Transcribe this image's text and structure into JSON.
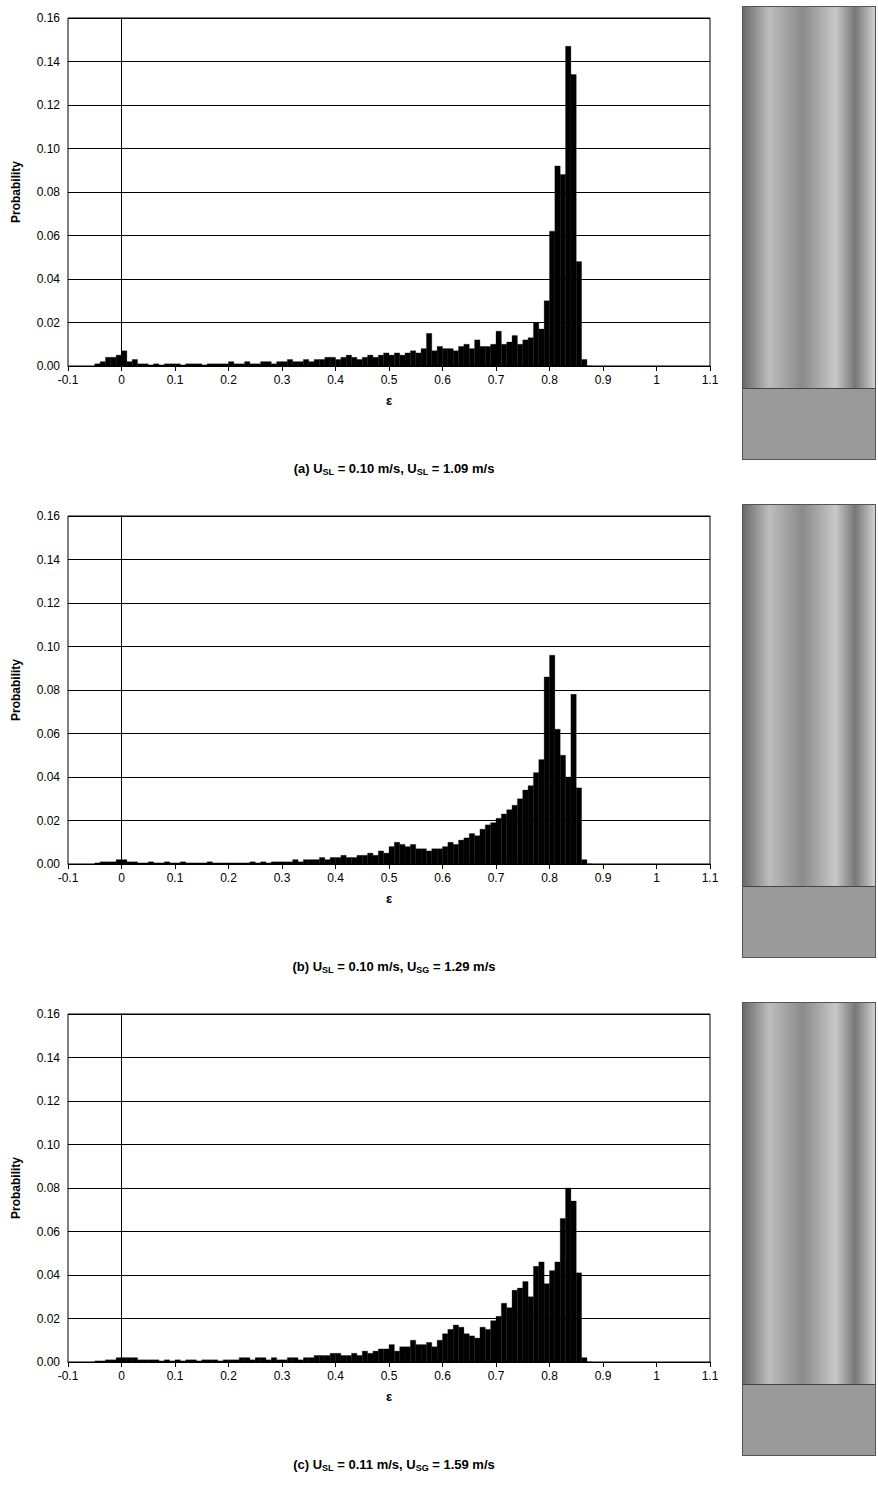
{
  "chart_data": [
    {
      "type": "histogram",
      "title": "(a) USL = 0.10 m/s, USL = 1.09 m/s",
      "xlabel": "ε",
      "ylabel": "Probability",
      "color": "#000000",
      "grid": true,
      "bins": [
        -0.05,
        -0.04,
        -0.03,
        -0.02,
        -0.01,
        0,
        0.01,
        0.02,
        0.03,
        0.04,
        0.05,
        0.06,
        0.07,
        0.08,
        0.09,
        0.1,
        0.11,
        0.12,
        0.13,
        0.14,
        0.15,
        0.16,
        0.17,
        0.18,
        0.19,
        0.2,
        0.21,
        0.22,
        0.23,
        0.24,
        0.25,
        0.26,
        0.27,
        0.28,
        0.29,
        0.3,
        0.31,
        0.32,
        0.33,
        0.34,
        0.35,
        0.36,
        0.37,
        0.38,
        0.39,
        0.4,
        0.41,
        0.42,
        0.43,
        0.44,
        0.45,
        0.46,
        0.47,
        0.48,
        0.49,
        0.5,
        0.51,
        0.52,
        0.53,
        0.54,
        0.55,
        0.56,
        0.57,
        0.58,
        0.59,
        0.6,
        0.61,
        0.62,
        0.63,
        0.64,
        0.65,
        0.66,
        0.67,
        0.68,
        0.69,
        0.7,
        0.71,
        0.72,
        0.73,
        0.74,
        0.75,
        0.76,
        0.77,
        0.78,
        0.79,
        0.8,
        0.81,
        0.82,
        0.83,
        0.84,
        0.85,
        0.86,
        0.87,
        0.88
      ],
      "values": [
        0.001,
        0.002,
        0.004,
        0.004,
        0.005,
        0.007,
        0.002,
        0.003,
        0.001,
        0.001,
        0.0005,
        0.001,
        0.0005,
        0.001,
        0.001,
        0.001,
        0.0005,
        0.001,
        0.001,
        0.001,
        0.0005,
        0.001,
        0.001,
        0.001,
        0.001,
        0.002,
        0.001,
        0.001,
        0.002,
        0.001,
        0.001,
        0.002,
        0.002,
        0.001,
        0.002,
        0.002,
        0.003,
        0.002,
        0.002,
        0.003,
        0.002,
        0.003,
        0.003,
        0.004,
        0.004,
        0.003,
        0.004,
        0.005,
        0.004,
        0.003,
        0.004,
        0.005,
        0.004,
        0.005,
        0.006,
        0.005,
        0.006,
        0.005,
        0.006,
        0.007,
        0.006,
        0.008,
        0.015,
        0.007,
        0.009,
        0.008,
        0.008,
        0.007,
        0.009,
        0.01,
        0.008,
        0.012,
        0.009,
        0.009,
        0.01,
        0.016,
        0.01,
        0.011,
        0.014,
        0.01,
        0.012,
        0.013,
        0.02,
        0.017,
        0.03,
        0.062,
        0.092,
        0.088,
        0.147,
        0.134,
        0.048,
        0.003,
        0
      ],
      "xlim": [
        -0.1,
        1.1
      ],
      "xticks": [
        -0.1,
        0,
        0.1,
        0.2,
        0.3,
        0.4,
        0.5,
        0.6,
        0.7,
        0.8,
        0.9,
        1,
        1.1
      ],
      "ylim": [
        0,
        0.16
      ],
      "yticks": [
        {
          "value": 0,
          "label": "0.00"
        },
        {
          "value": 0.02,
          "label": "0.02"
        },
        {
          "value": 0.04,
          "label": "0.04"
        },
        {
          "value": 0.06,
          "label": "0.06"
        },
        {
          "value": 0.08,
          "label": "0.08"
        },
        {
          "value": 0.1,
          "label": "0.10"
        },
        {
          "value": 0.12,
          "label": "0.12"
        },
        {
          "value": 0.14,
          "label": "0.14"
        },
        {
          "value": 0.16,
          "label": "0.16"
        }
      ]
    },
    {
      "type": "histogram",
      "title": "(b) USL = 0.10 m/s, USG = 1.29 m/s",
      "xlabel": "ε",
      "ylabel": "Probability",
      "color": "#000000",
      "grid": true,
      "bins": [
        -0.05,
        -0.04,
        -0.03,
        -0.02,
        -0.01,
        0,
        0.01,
        0.02,
        0.03,
        0.04,
        0.05,
        0.06,
        0.07,
        0.08,
        0.09,
        0.1,
        0.11,
        0.12,
        0.13,
        0.14,
        0.15,
        0.16,
        0.17,
        0.18,
        0.19,
        0.2,
        0.21,
        0.22,
        0.23,
        0.24,
        0.25,
        0.26,
        0.27,
        0.28,
        0.29,
        0.3,
        0.31,
        0.32,
        0.33,
        0.34,
        0.35,
        0.36,
        0.37,
        0.38,
        0.39,
        0.4,
        0.41,
        0.42,
        0.43,
        0.44,
        0.45,
        0.46,
        0.47,
        0.48,
        0.49,
        0.5,
        0.51,
        0.52,
        0.53,
        0.54,
        0.55,
        0.56,
        0.57,
        0.58,
        0.59,
        0.6,
        0.61,
        0.62,
        0.63,
        0.64,
        0.65,
        0.66,
        0.67,
        0.68,
        0.69,
        0.7,
        0.71,
        0.72,
        0.73,
        0.74,
        0.75,
        0.76,
        0.77,
        0.78,
        0.79,
        0.8,
        0.81,
        0.82,
        0.83,
        0.84,
        0.85,
        0.86,
        0.87,
        0.88
      ],
      "values": [
        0.0005,
        0.001,
        0.001,
        0.001,
        0.002,
        0.002,
        0.001,
        0.001,
        0.0005,
        0.0005,
        0.001,
        0.0005,
        0.0005,
        0.001,
        0.0005,
        0.0005,
        0.001,
        0.0005,
        0.0005,
        0.0005,
        0.0005,
        0.001,
        0.0005,
        0.0005,
        0.0005,
        0.0005,
        0.0005,
        0.0005,
        0.0005,
        0.001,
        0.0005,
        0.001,
        0.0005,
        0.001,
        0.001,
        0.001,
        0.001,
        0.002,
        0.001,
        0.002,
        0.002,
        0.002,
        0.003,
        0.002,
        0.003,
        0.003,
        0.004,
        0.003,
        0.003,
        0.004,
        0.004,
        0.005,
        0.004,
        0.006,
        0.005,
        0.008,
        0.01,
        0.009,
        0.008,
        0.009,
        0.007,
        0.007,
        0.006,
        0.007,
        0.007,
        0.008,
        0.01,
        0.009,
        0.011,
        0.012,
        0.014,
        0.013,
        0.016,
        0.018,
        0.019,
        0.021,
        0.023,
        0.025,
        0.027,
        0.03,
        0.034,
        0.036,
        0.042,
        0.048,
        0.086,
        0.096,
        0.062,
        0.05,
        0.04,
        0.078,
        0.035,
        0.002,
        0
      ],
      "xlim": [
        -0.1,
        1.1
      ],
      "xticks": [
        -0.1,
        0,
        0.1,
        0.2,
        0.3,
        0.4,
        0.5,
        0.6,
        0.7,
        0.8,
        0.9,
        1,
        1.1
      ],
      "ylim": [
        0,
        0.16
      ],
      "yticks": [
        {
          "value": 0,
          "label": "0.00"
        },
        {
          "value": 0.02,
          "label": "0.02"
        },
        {
          "value": 0.04,
          "label": "0.04"
        },
        {
          "value": 0.06,
          "label": "0.06"
        },
        {
          "value": 0.08,
          "label": "0.08"
        },
        {
          "value": 0.1,
          "label": "0.10"
        },
        {
          "value": 0.12,
          "label": "0.12"
        },
        {
          "value": 0.14,
          "label": "0.14"
        },
        {
          "value": 0.16,
          "label": "0.16"
        }
      ]
    },
    {
      "type": "histogram",
      "title": "(c) USL = 0.11 m/s, USG = 1.59 m/s",
      "xlabel": "ε",
      "ylabel": "Probability",
      "color": "#000000",
      "grid": true,
      "bins": [
        -0.05,
        -0.04,
        -0.03,
        -0.02,
        -0.01,
        0,
        0.01,
        0.02,
        0.03,
        0.04,
        0.05,
        0.06,
        0.07,
        0.08,
        0.09,
        0.1,
        0.11,
        0.12,
        0.13,
        0.14,
        0.15,
        0.16,
        0.17,
        0.18,
        0.19,
        0.2,
        0.21,
        0.22,
        0.23,
        0.24,
        0.25,
        0.26,
        0.27,
        0.28,
        0.29,
        0.3,
        0.31,
        0.32,
        0.33,
        0.34,
        0.35,
        0.36,
        0.37,
        0.38,
        0.39,
        0.4,
        0.41,
        0.42,
        0.43,
        0.44,
        0.45,
        0.46,
        0.47,
        0.48,
        0.49,
        0.5,
        0.51,
        0.52,
        0.53,
        0.54,
        0.55,
        0.56,
        0.57,
        0.58,
        0.59,
        0.6,
        0.61,
        0.62,
        0.63,
        0.64,
        0.65,
        0.66,
        0.67,
        0.68,
        0.69,
        0.7,
        0.71,
        0.72,
        0.73,
        0.74,
        0.75,
        0.76,
        0.77,
        0.78,
        0.79,
        0.8,
        0.81,
        0.82,
        0.83,
        0.84,
        0.85,
        0.86,
        0.87,
        0.88
      ],
      "values": [
        0.0005,
        0.0005,
        0.001,
        0.001,
        0.002,
        0.002,
        0.002,
        0.002,
        0.001,
        0.001,
        0.001,
        0.001,
        0.0005,
        0.001,
        0.0005,
        0.001,
        0.0005,
        0.001,
        0.001,
        0.0005,
        0.001,
        0.001,
        0.001,
        0.0005,
        0.001,
        0.001,
        0.001,
        0.002,
        0.002,
        0.001,
        0.002,
        0.002,
        0.001,
        0.002,
        0.001,
        0.001,
        0.002,
        0.002,
        0.001,
        0.002,
        0.002,
        0.003,
        0.003,
        0.003,
        0.004,
        0.004,
        0.003,
        0.003,
        0.004,
        0.003,
        0.005,
        0.004,
        0.005,
        0.006,
        0.006,
        0.008,
        0.005,
        0.007,
        0.007,
        0.01,
        0.008,
        0.008,
        0.009,
        0.007,
        0.01,
        0.013,
        0.015,
        0.017,
        0.016,
        0.013,
        0.012,
        0.011,
        0.016,
        0.015,
        0.019,
        0.021,
        0.027,
        0.025,
        0.033,
        0.034,
        0.037,
        0.03,
        0.044,
        0.046,
        0.036,
        0.042,
        0.046,
        0.066,
        0.08,
        0.074,
        0.041,
        0.002,
        0
      ],
      "xlim": [
        -0.1,
        1.1
      ],
      "xticks": [
        -0.1,
        0,
        0.1,
        0.2,
        0.3,
        0.4,
        0.5,
        0.6,
        0.7,
        0.8,
        0.9,
        1,
        1.1
      ],
      "ylim": [
        0,
        0.16
      ],
      "yticks": [
        {
          "value": 0,
          "label": "0.00"
        },
        {
          "value": 0.02,
          "label": "0.02"
        },
        {
          "value": 0.04,
          "label": "0.04"
        },
        {
          "value": 0.06,
          "label": "0.06"
        },
        {
          "value": 0.08,
          "label": "0.08"
        },
        {
          "value": 0.1,
          "label": "0.10"
        },
        {
          "value": 0.12,
          "label": "0.12"
        },
        {
          "value": 0.14,
          "label": "0.14"
        },
        {
          "value": 0.16,
          "label": "0.16"
        }
      ]
    }
  ]
}
